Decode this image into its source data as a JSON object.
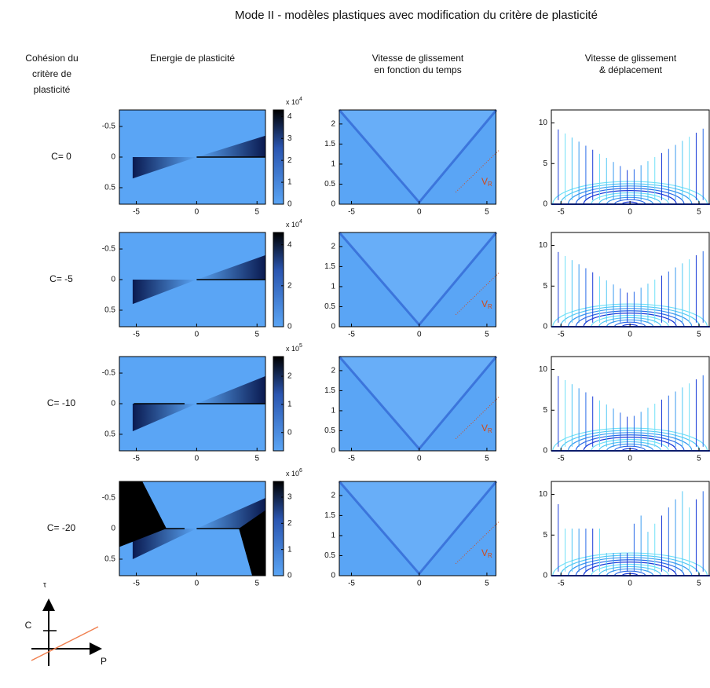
{
  "title": "Mode II - modèles plastiques avec modification du critère de plasticité",
  "side_header": [
    "Cohésion du",
    "critère de",
    "plasticité"
  ],
  "energy": {
    "title": [
      "Energie de plasticité"
    ],
    "xlim": [
      -6.4,
      5.7
    ],
    "xticks": [
      -5,
      0,
      5
    ],
    "ylim": [
      0.77,
      -0.77
    ],
    "yticks": [
      -0.5,
      0,
      0.5
    ]
  },
  "velocity": {
    "title": [
      "Vitesse de glissement",
      "en fonction du temps"
    ],
    "xlim": [
      -5.9,
      5.7
    ],
    "xticks": [
      -5,
      0,
      5
    ],
    "ylim": [
      0,
      2.35
    ],
    "yticks": [
      0,
      0.5,
      1,
      1.5,
      2
    ],
    "annotation": {
      "text": "V",
      "subscript": "R"
    }
  },
  "displacement": {
    "title": [
      "Vitesse de glissement",
      "& déplacement"
    ],
    "xlim": [
      -5.7,
      5.8
    ],
    "xticks": [
      -5,
      0,
      5
    ],
    "ylim": [
      0,
      11.6
    ],
    "yticks": [
      0,
      5,
      10
    ]
  },
  "rows": [
    {
      "label": "C= 0",
      "colorbar": {
        "lim": [
          0,
          4.3
        ],
        "ticks": [
          0,
          1,
          2,
          3,
          4
        ],
        "multiplier": "x 10",
        "exponent": 4
      }
    },
    {
      "label": "C= -5",
      "colorbar": {
        "lim": [
          0,
          4.6
        ],
        "ticks": [
          0,
          2,
          4
        ],
        "multiplier": "x 10",
        "exponent": 4
      }
    },
    {
      "label": "C= -10",
      "colorbar": {
        "lim": [
          -0.65,
          2.7
        ],
        "ticks": [
          0,
          1,
          2
        ],
        "multiplier": "x 10",
        "exponent": 5
      }
    },
    {
      "label": "C= -20",
      "colorbar": {
        "lim": [
          0,
          3.6
        ],
        "ticks": [
          0,
          1,
          2,
          3
        ],
        "multiplier": "x 10",
        "exponent": 6
      }
    }
  ],
  "inset": {
    "y_label": "τ",
    "intercept_label": "C",
    "x_label": "P"
  }
}
